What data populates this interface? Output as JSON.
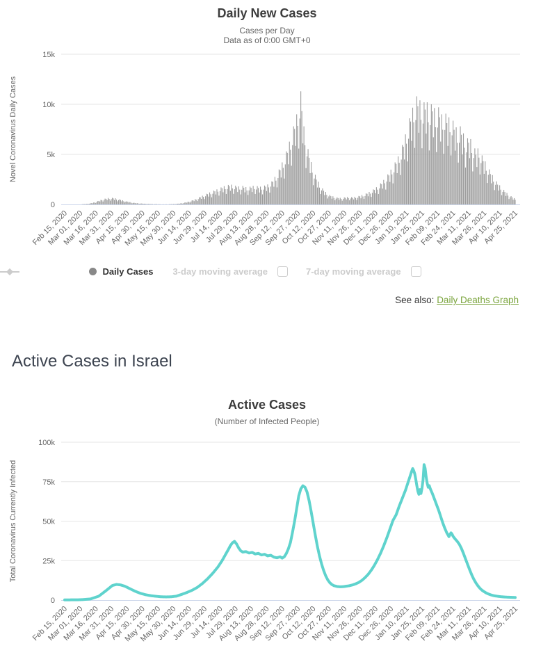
{
  "daily_chart": {
    "title": "Daily New Cases",
    "subtitle1": "Cases per Day",
    "subtitle2": "Data as of 0:00 GMT+0",
    "y_axis_title": "Novel Coronavirus Daily Cases",
    "legend": {
      "daily": "Daily Cases",
      "ma3": "3-day moving average",
      "ma7": "7-day moving average"
    },
    "see_also_label": "See also:",
    "see_also_link": "Daily Deaths Graph"
  },
  "section": {
    "heading": "Active Cases in Israel"
  },
  "active_chart": {
    "title": "Active Cases",
    "subtitle": "(Number of Infected People)",
    "y_axis_title": "Total Coronavirus Currently Infected"
  },
  "colors": {
    "bar": "#9d9d9d",
    "line": "#5fd3cd",
    "grid": "#e6e6e6",
    "axis_line": "#ccd6eb",
    "tick_label": "#666666",
    "link_green": "#7aa43c"
  },
  "chart_data": [
    {
      "type": "bar",
      "title": "Daily New Cases",
      "subtitle": [
        "Cases per Day",
        "Data as of 0:00 GMT+0"
      ],
      "ylabel": "Novel Coronavirus Daily Cases",
      "ylim": [
        0,
        15000
      ],
      "y_ticks": [
        {
          "v": 0,
          "label": "0"
        },
        {
          "v": 5000,
          "label": "5k"
        },
        {
          "v": 10000,
          "label": "10k"
        },
        {
          "v": 15000,
          "label": "15k"
        }
      ],
      "x_tick_interval_days": 15,
      "x_tick_labels": [
        "Feb 15, 2020",
        "Mar 01, 2020",
        "Mar 16, 2020",
        "Mar 31, 2020",
        "Apr 15, 2020",
        "Apr 30, 2020",
        "May 15, 2020",
        "May 30, 2020",
        "Jun 14, 2020",
        "Jun 29, 2020",
        "Jul 14, 2020",
        "Jul 29, 2020",
        "Aug 13, 2020",
        "Aug 28, 2020",
        "Sep 12, 2020",
        "Sep 27, 2020",
        "Oct 12, 2020",
        "Oct 27, 2020",
        "Nov 11, 2020",
        "Nov 26, 2020",
        "Dec 11, 2020",
        "Dec 26, 2020",
        "Jan 10, 2021",
        "Jan 25, 2021",
        "Feb 09, 2021",
        "Feb 24, 2021",
        "Mar 11, 2021",
        "Mar 26, 2021",
        "Apr 10, 2021",
        "Apr 25, 2021"
      ],
      "series_name": "Daily Cases",
      "envelope_day_value_pairs": [
        [
          0,
          0
        ],
        [
          12,
          8
        ],
        [
          20,
          40
        ],
        [
          24,
          90
        ],
        [
          28,
          190
        ],
        [
          32,
          340
        ],
        [
          36,
          500
        ],
        [
          40,
          610
        ],
        [
          44,
          680
        ],
        [
          48,
          640
        ],
        [
          52,
          540
        ],
        [
          56,
          420
        ],
        [
          60,
          310
        ],
        [
          64,
          220
        ],
        [
          68,
          150
        ],
        [
          72,
          110
        ],
        [
          76,
          80
        ],
        [
          80,
          55
        ],
        [
          84,
          40
        ],
        [
          88,
          32
        ],
        [
          92,
          26
        ],
        [
          96,
          22
        ],
        [
          100,
          24
        ],
        [
          104,
          35
        ],
        [
          108,
          60
        ],
        [
          112,
          110
        ],
        [
          116,
          190
        ],
        [
          120,
          300
        ],
        [
          124,
          440
        ],
        [
          128,
          620
        ],
        [
          132,
          820
        ],
        [
          136,
          1020
        ],
        [
          140,
          1200
        ],
        [
          144,
          1380
        ],
        [
          148,
          1550
        ],
        [
          152,
          1750
        ],
        [
          156,
          1900
        ],
        [
          160,
          2000
        ],
        [
          164,
          1900
        ],
        [
          168,
          1800
        ],
        [
          172,
          1850
        ],
        [
          176,
          1700
        ],
        [
          180,
          1800
        ],
        [
          184,
          1900
        ],
        [
          188,
          1750
        ],
        [
          192,
          1850
        ],
        [
          196,
          2000
        ],
        [
          200,
          2300
        ],
        [
          204,
          2900
        ],
        [
          208,
          3700
        ],
        [
          212,
          4700
        ],
        [
          216,
          5900
        ],
        [
          220,
          7400
        ],
        [
          224,
          9000
        ],
        [
          228,
          11300
        ],
        [
          231,
          7800
        ],
        [
          234,
          6000
        ],
        [
          237,
          4600
        ],
        [
          240,
          3500
        ],
        [
          243,
          2700
        ],
        [
          246,
          2050
        ],
        [
          249,
          1600
        ],
        [
          252,
          1250
        ],
        [
          255,
          1000
        ],
        [
          258,
          850
        ],
        [
          262,
          720
        ],
        [
          266,
          660
        ],
        [
          270,
          700
        ],
        [
          274,
          760
        ],
        [
          278,
          710
        ],
        [
          282,
          800
        ],
        [
          286,
          900
        ],
        [
          290,
          1050
        ],
        [
          294,
          1250
        ],
        [
          298,
          1500
        ],
        [
          302,
          1800
        ],
        [
          306,
          2200
        ],
        [
          310,
          2700
        ],
        [
          314,
          3300
        ],
        [
          318,
          4000
        ],
        [
          322,
          4800
        ],
        [
          325,
          5600
        ],
        [
          328,
          6600
        ],
        [
          331,
          7800
        ],
        [
          334,
          9000
        ],
        [
          337,
          10000
        ],
        [
          340,
          10800
        ],
        [
          343,
          10400
        ],
        [
          346,
          10100
        ],
        [
          349,
          10400
        ],
        [
          352,
          9800
        ],
        [
          355,
          10100
        ],
        [
          358,
          9400
        ],
        [
          361,
          9700
        ],
        [
          364,
          9000
        ],
        [
          367,
          9300
        ],
        [
          370,
          8600
        ],
        [
          373,
          8900
        ],
        [
          376,
          8100
        ],
        [
          379,
          7500
        ],
        [
          382,
          7800
        ],
        [
          385,
          7100
        ],
        [
          388,
          6500
        ],
        [
          391,
          6800
        ],
        [
          394,
          6000
        ],
        [
          397,
          5400
        ],
        [
          400,
          5700
        ],
        [
          403,
          4900
        ],
        [
          406,
          4300
        ],
        [
          409,
          3700
        ],
        [
          412,
          3100
        ],
        [
          415,
          2600
        ],
        [
          418,
          2150
        ],
        [
          421,
          1800
        ],
        [
          424,
          1450
        ],
        [
          427,
          1150
        ],
        [
          430,
          900
        ],
        [
          433,
          700
        ],
        [
          435,
          560
        ]
      ],
      "weekday_multipliers": [
        1.0,
        0.82,
        0.55,
        0.8,
        1.0,
        0.92,
        0.68
      ],
      "peak_annotations": [
        {
          "date": "Sep 30, 2020",
          "value": 11300
        },
        {
          "date": "Jan 20, 2021",
          "value": 10200
        }
      ],
      "grid": true,
      "legend_position": "bottom"
    },
    {
      "type": "line",
      "title": "Active Cases",
      "subtitle": "(Number of Infected People)",
      "ylabel": "Total Coronavirus Currently Infected",
      "ylim": [
        0,
        100000
      ],
      "y_ticks": [
        {
          "v": 0,
          "label": "0"
        },
        {
          "v": 25000,
          "label": "25k"
        },
        {
          "v": 50000,
          "label": "50k"
        },
        {
          "v": 75000,
          "label": "75k"
        },
        {
          "v": 100000,
          "label": "100k"
        }
      ],
      "x_tick_interval_days": 15,
      "x_tick_labels": [
        "Feb 15, 2020",
        "Mar 01, 2020",
        "Mar 16, 2020",
        "Mar 31, 2020",
        "Apr 15, 2020",
        "Apr 30, 2020",
        "May 15, 2020",
        "May 30, 2020",
        "Jun 14, 2020",
        "Jun 29, 2020",
        "Jul 14, 2020",
        "Jul 29, 2020",
        "Aug 13, 2020",
        "Aug 28, 2020",
        "Sep 12, 2020",
        "Sep 27, 2020",
        "Oct 12, 2020",
        "Oct 27, 2020",
        "Nov 11, 2020",
        "Nov 26, 2020",
        "Dec 11, 2020",
        "Dec 26, 2020",
        "Jan 10, 2021",
        "Jan 25, 2021",
        "Feb 09, 2021",
        "Feb 24, 2021",
        "Mar 11, 2021",
        "Mar 26, 2021",
        "Apr 10, 2021",
        "Apr 25, 2021"
      ],
      "series_name": "Active Cases",
      "day_value_pairs": [
        [
          0,
          100
        ],
        [
          15,
          200
        ],
        [
          25,
          700
        ],
        [
          33,
          2500
        ],
        [
          40,
          6000
        ],
        [
          46,
          9200
        ],
        [
          50,
          9900
        ],
        [
          54,
          9600
        ],
        [
          58,
          8800
        ],
        [
          63,
          7200
        ],
        [
          68,
          5600
        ],
        [
          73,
          4300
        ],
        [
          78,
          3400
        ],
        [
          83,
          2800
        ],
        [
          88,
          2400
        ],
        [
          93,
          2100
        ],
        [
          98,
          2000
        ],
        [
          103,
          2100
        ],
        [
          108,
          2500
        ],
        [
          113,
          3600
        ],
        [
          118,
          4800
        ],
        [
          123,
          6200
        ],
        [
          128,
          8000
        ],
        [
          133,
          10500
        ],
        [
          138,
          13500
        ],
        [
          143,
          17000
        ],
        [
          148,
          21000
        ],
        [
          152,
          25000
        ],
        [
          155,
          28500
        ],
        [
          158,
          32000
        ],
        [
          160,
          34500
        ],
        [
          162,
          36300
        ],
        [
          164,
          37200
        ],
        [
          166,
          35500
        ],
        [
          168,
          33000
        ],
        [
          170,
          31200
        ],
        [
          172,
          30400
        ],
        [
          175,
          30700
        ],
        [
          178,
          29800
        ],
        [
          181,
          30200
        ],
        [
          184,
          29200
        ],
        [
          187,
          29600
        ],
        [
          190,
          28600
        ],
        [
          193,
          29000
        ],
        [
          196,
          28000
        ],
        [
          199,
          28400
        ],
        [
          202,
          27200
        ],
        [
          205,
          26800
        ],
        [
          208,
          27400
        ],
        [
          210,
          26600
        ],
        [
          212,
          27400
        ],
        [
          214,
          29500
        ],
        [
          216,
          32500
        ],
        [
          218,
          36500
        ],
        [
          220,
          43000
        ],
        [
          222,
          50000
        ],
        [
          224,
          58000
        ],
        [
          226,
          66000
        ],
        [
          228,
          70500
        ],
        [
          230,
          72400
        ],
        [
          232,
          71500
        ],
        [
          234,
          68500
        ],
        [
          236,
          63000
        ],
        [
          238,
          56000
        ],
        [
          240,
          48500
        ],
        [
          242,
          41000
        ],
        [
          244,
          34000
        ],
        [
          246,
          28000
        ],
        [
          248,
          23000
        ],
        [
          250,
          18800
        ],
        [
          252,
          15400
        ],
        [
          254,
          12800
        ],
        [
          256,
          11000
        ],
        [
          258,
          9800
        ],
        [
          260,
          9100
        ],
        [
          263,
          8600
        ],
        [
          266,
          8400
        ],
        [
          269,
          8500
        ],
        [
          272,
          8800
        ],
        [
          275,
          9100
        ],
        [
          278,
          9600
        ],
        [
          281,
          10300
        ],
        [
          284,
          11200
        ],
        [
          287,
          12500
        ],
        [
          290,
          14200
        ],
        [
          293,
          16300
        ],
        [
          296,
          18900
        ],
        [
          299,
          22000
        ],
        [
          302,
          25600
        ],
        [
          305,
          29700
        ],
        [
          308,
          34300
        ],
        [
          311,
          39400
        ],
        [
          314,
          44900
        ],
        [
          317,
          50500
        ],
        [
          320,
          54000
        ],
        [
          323,
          59500
        ],
        [
          326,
          64500
        ],
        [
          329,
          69500
        ],
        [
          331,
          73500
        ],
        [
          333,
          77500
        ],
        [
          334,
          79500
        ],
        [
          335,
          81500
        ],
        [
          336,
          83300
        ],
        [
          337,
          82000
        ],
        [
          338,
          80000
        ],
        [
          339,
          76500
        ],
        [
          340,
          72500
        ],
        [
          341,
          69000
        ],
        [
          342,
          67000
        ],
        [
          343,
          70000
        ],
        [
          344,
          67500
        ],
        [
          345,
          71000
        ],
        [
          346,
          76000
        ],
        [
          347,
          85800
        ],
        [
          348,
          83500
        ],
        [
          349,
          78000
        ],
        [
          350,
          74000
        ],
        [
          351,
          71500
        ],
        [
          352,
          72500
        ],
        [
          353,
          70500
        ],
        [
          355,
          67500
        ],
        [
          357,
          64000
        ],
        [
          359,
          60500
        ],
        [
          361,
          57000
        ],
        [
          363,
          53000
        ],
        [
          365,
          49000
        ],
        [
          367,
          45500
        ],
        [
          369,
          42500
        ],
        [
          371,
          40200
        ],
        [
          372,
          41500
        ],
        [
          373,
          42600
        ],
        [
          374,
          41800
        ],
        [
          375,
          40400
        ],
        [
          377,
          38700
        ],
        [
          379,
          37200
        ],
        [
          381,
          35400
        ],
        [
          383,
          32800
        ],
        [
          385,
          29600
        ],
        [
          387,
          26100
        ],
        [
          389,
          22600
        ],
        [
          391,
          19200
        ],
        [
          393,
          16000
        ],
        [
          395,
          13200
        ],
        [
          397,
          10900
        ],
        [
          399,
          9000
        ],
        [
          401,
          7400
        ],
        [
          403,
          6200
        ],
        [
          405,
          5300
        ],
        [
          407,
          4500
        ],
        [
          409,
          3900
        ],
        [
          411,
          3400
        ],
        [
          413,
          3000
        ],
        [
          415,
          2700
        ],
        [
          417,
          2500
        ],
        [
          419,
          2300
        ],
        [
          421,
          2150
        ],
        [
          423,
          2050
        ],
        [
          425,
          1950
        ],
        [
          427,
          1850
        ],
        [
          429,
          1800
        ],
        [
          431,
          1750
        ],
        [
          433,
          1700
        ],
        [
          435,
          1650
        ]
      ],
      "grid": true,
      "legend_position": "none"
    }
  ]
}
